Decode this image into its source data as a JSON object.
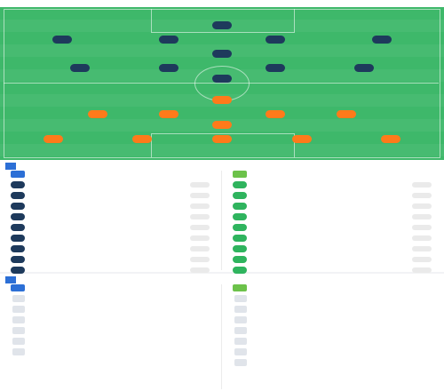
{
  "header": {
    "title": "",
    "subtitle": ""
  },
  "pitch": {
    "home_team": "",
    "home_formation": "",
    "away_team": "",
    "away_formation": "",
    "home_players": [
      {
        "num": "",
        "name": ""
      },
      {
        "num": "",
        "name": ""
      },
      {
        "num": "",
        "name": ""
      },
      {
        "num": "",
        "name": ""
      },
      {
        "num": "",
        "name": ""
      },
      {
        "num": "",
        "name": ""
      },
      {
        "num": "",
        "name": ""
      },
      {
        "num": "",
        "name": ""
      },
      {
        "num": "",
        "name": ""
      },
      {
        "num": "",
        "name": ""
      },
      {
        "num": "",
        "name": ""
      }
    ],
    "away_players": [
      {
        "num": "",
        "name": ""
      },
      {
        "num": "",
        "name": ""
      },
      {
        "num": "",
        "name": ""
      },
      {
        "num": "",
        "name": ""
      },
      {
        "num": "",
        "name": ""
      },
      {
        "num": "",
        "name": ""
      },
      {
        "num": "",
        "name": ""
      },
      {
        "num": "",
        "name": ""
      },
      {
        "num": "",
        "name": ""
      },
      {
        "num": "",
        "name": ""
      },
      {
        "num": "",
        "name": ""
      }
    ]
  },
  "subs": {
    "title": "",
    "home_team": "",
    "away_team": "",
    "home": [
      {
        "num": "",
        "name": ""
      },
      {
        "num": "",
        "name": ""
      },
      {
        "num": "",
        "name": ""
      },
      {
        "num": "",
        "name": ""
      },
      {
        "num": "",
        "name": ""
      },
      {
        "num": "",
        "name": ""
      },
      {
        "num": "",
        "name": ""
      },
      {
        "num": "",
        "name": ""
      },
      {
        "num": "",
        "name": ""
      }
    ],
    "away": [
      {
        "num": "",
        "name": ""
      },
      {
        "num": "",
        "name": ""
      },
      {
        "num": "",
        "name": ""
      },
      {
        "num": "",
        "name": ""
      },
      {
        "num": "",
        "name": ""
      },
      {
        "num": "",
        "name": ""
      },
      {
        "num": "",
        "name": ""
      },
      {
        "num": "",
        "name": ""
      },
      {
        "num": "",
        "name": ""
      }
    ]
  },
  "staff": {
    "title": "",
    "home_team": "",
    "away_team": "",
    "home": [
      {
        "name": ""
      },
      {
        "name": ""
      },
      {
        "name": ""
      },
      {
        "name": ""
      },
      {
        "name": ""
      },
      {
        "name": ""
      }
    ],
    "away": [
      {
        "name": ""
      },
      {
        "name": ""
      },
      {
        "name": ""
      },
      {
        "name": ""
      },
      {
        "name": ""
      },
      {
        "name": ""
      },
      {
        "name": ""
      }
    ]
  },
  "colors": {
    "home_shirt": "#1e3a5c",
    "away_shirt": "#ff7a1a",
    "pitch": "#3eb86a",
    "accent": "#2c6fd6"
  }
}
